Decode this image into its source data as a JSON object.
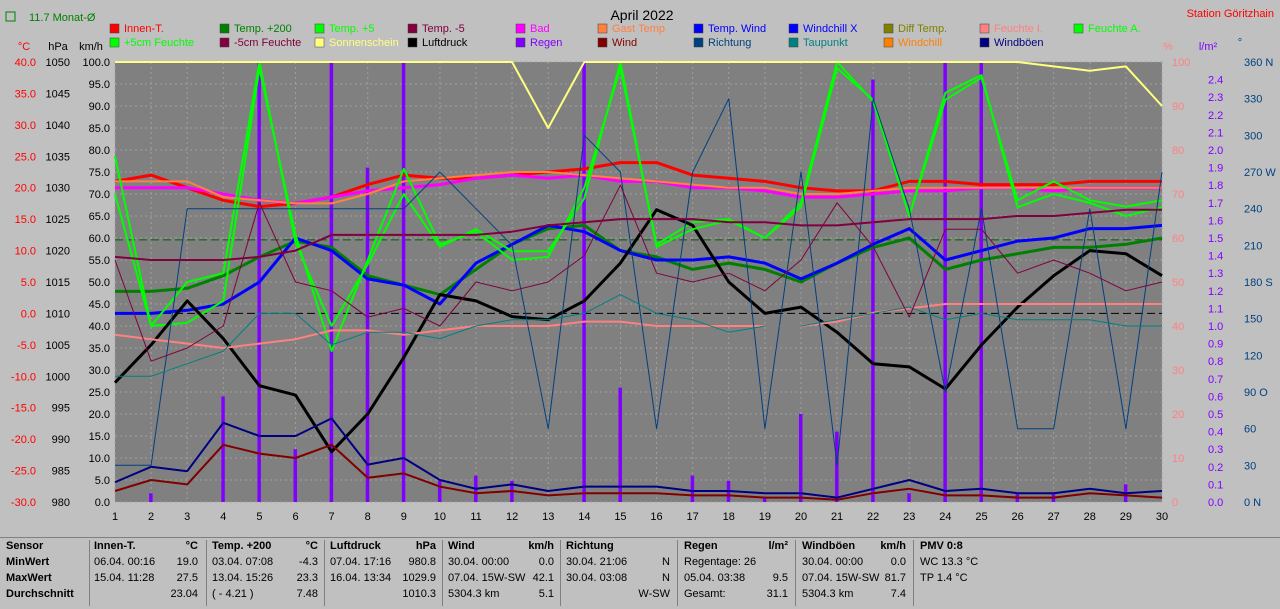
{
  "header": {
    "monthavg": "11.7 Monat-Ø",
    "title": "April 2022",
    "station": "Station Göritzhain"
  },
  "axis_units": {
    "temp": "°C",
    "hpa": "hPa",
    "kmh": "km/h",
    "percent": "%",
    "rain": "l/m²",
    "deg": "°"
  },
  "legend": [
    {
      "label": "Innen-T.",
      "color": "#ff0000"
    },
    {
      "label": "Temp. +200",
      "color": "#008000"
    },
    {
      "label": "Temp. +5",
      "color": "#00ff00"
    },
    {
      "label": "Temp. -5",
      "color": "#800040"
    },
    {
      "label": "Bad",
      "color": "#ff00ff"
    },
    {
      "label": "Gast Temp",
      "color": "#ff8040"
    },
    {
      "label": "Temp. Wind",
      "color": "#0000ff"
    },
    {
      "label": "Windchill X",
      "color": "#0000ff"
    },
    {
      "label": "Diff Temp.",
      "color": "#808000"
    },
    {
      "label": "Feuchte I.",
      "color": "#ff8080"
    },
    {
      "label": "Feuchte A.",
      "color": "#00ff00"
    },
    {
      "label": "+5cm Feuchte",
      "color": "#00ff00"
    },
    {
      "label": "-5cm Feuchte",
      "color": "#800040"
    },
    {
      "label": "Sonnenschein",
      "color": "#ffff80"
    },
    {
      "label": "Luftdruck",
      "color": "#000000"
    },
    {
      "label": "Regen",
      "color": "#8000ff"
    },
    {
      "label": "Wind",
      "color": "#800000"
    },
    {
      "label": "Richtung",
      "color": "#004080"
    },
    {
      "label": "Taupunkt",
      "color": "#008080"
    },
    {
      "label": "Windchill",
      "color": "#ff8000"
    },
    {
      "label": "Windböen",
      "color": "#000080"
    }
  ],
  "chart_data": {
    "type": "line",
    "x": [
      1,
      2,
      3,
      4,
      5,
      6,
      7,
      8,
      9,
      10,
      11,
      12,
      13,
      14,
      15,
      16,
      17,
      18,
      19,
      20,
      21,
      22,
      23,
      24,
      25,
      26,
      27,
      28,
      29,
      30
    ],
    "xlim": [
      1,
      30
    ],
    "axes": {
      "temp_c": {
        "ticks": [
          "40.0",
          "35.0",
          "30.0",
          "25.0",
          "20.0",
          "15.0",
          "10.0",
          "5.0",
          "0.0",
          "-5.0",
          "-10.0",
          "-15.0",
          "-20.0",
          "-25.0",
          "-30.0"
        ],
        "ylim": [
          -30,
          40
        ]
      },
      "hpa": {
        "ticks": [
          "1050",
          "1045",
          "1040",
          "1035",
          "1030",
          "1025",
          "1020",
          "1015",
          "1010",
          "1005",
          "1000",
          "995",
          "990",
          "985",
          "980"
        ],
        "ylim": [
          980,
          1050
        ]
      },
      "kmh": {
        "ticks": [
          "100.0",
          "95.0",
          "90.0",
          "85.0",
          "80.0",
          "75.0",
          "70.0",
          "65.0",
          "60.0",
          "55.0",
          "50.0",
          "45.0",
          "40.0",
          "35.0",
          "30.0",
          "25.0",
          "20.0",
          "15.0",
          "10.0",
          "5.0",
          "0.0"
        ],
        "ylim": [
          0,
          100
        ]
      },
      "percent": {
        "ticks": [
          "100",
          "90",
          "80",
          "70",
          "60",
          "50",
          "40",
          "30",
          "20",
          "10",
          "0"
        ],
        "ylim": [
          0,
          100
        ]
      },
      "rain": {
        "ticks": [
          "2.4",
          "2.3",
          "2.2",
          "2.1",
          "2.0",
          "1.9",
          "1.8",
          "1.7",
          "1.6",
          "1.5",
          "1.4",
          "1.3",
          "1.2",
          "1.1",
          "1.0",
          "0.9",
          "0.8",
          "0.7",
          "0.6",
          "0.5",
          "0.4",
          "0.3",
          "0.2",
          "0.1",
          "0.0"
        ],
        "ylim": [
          0,
          2.5
        ]
      },
      "deg": {
        "ticks": [
          "360 N",
          "330",
          "300",
          "270 W",
          "240",
          "210",
          "180 S",
          "150",
          "120",
          "90 O",
          "60",
          "30",
          "0 N"
        ],
        "ylim": [
          0,
          360
        ]
      }
    },
    "series": [
      {
        "name": "Innen-T.",
        "color": "#ff0000",
        "width": 3,
        "axis": "temp_c",
        "values": [
          21.0,
          22.0,
          20.0,
          18.0,
          17.0,
          17.5,
          18.5,
          20.5,
          22.0,
          21.5,
          21.5,
          22.0,
          22.5,
          23.0,
          24.0,
          24.0,
          22.0,
          21.5,
          21.0,
          20.0,
          19.5,
          19.5,
          21.0,
          21.0,
          20.5,
          20.5,
          20.5,
          21.0,
          21.0,
          21.0
        ]
      },
      {
        "name": "Bad",
        "color": "#ff00ff",
        "width": 3,
        "axis": "temp_c",
        "values": [
          20.0,
          20.0,
          20.0,
          19.0,
          18.0,
          17.5,
          18.5,
          19.5,
          20.0,
          20.5,
          21.5,
          22.0,
          21.5,
          22.0,
          21.0,
          21.0,
          20.0,
          20.0,
          19.5,
          18.5,
          18.5,
          19.0,
          19.5,
          19.5,
          20.0,
          20.0,
          19.5,
          20.0,
          20.0,
          20.0
        ]
      },
      {
        "name": "Gast Temp",
        "color": "#ff8040",
        "width": 2,
        "axis": "temp_c",
        "values": [
          21.0,
          21.0,
          21.0,
          18.5,
          18.0,
          17.5,
          17.5,
          19.0,
          21.0,
          21.5,
          22.0,
          22.5,
          22.5,
          22.0,
          21.5,
          21.0,
          20.5,
          20.0,
          20.0,
          19.0,
          19.0,
          19.5,
          20.0,
          20.0,
          20.0,
          20.0,
          20.0,
          20.0,
          20.0,
          20.0
        ]
      },
      {
        "name": "Temp. +200",
        "color": "#008000",
        "width": 3,
        "axis": "temp_c",
        "values": [
          3.5,
          3.5,
          4.0,
          6.0,
          9.0,
          11.5,
          10.5,
          6.0,
          4.5,
          3.0,
          7.0,
          11.0,
          13.5,
          14.0,
          10.0,
          9.0,
          7.0,
          8.0,
          7.0,
          5.0,
          8.0,
          10.5,
          12.0,
          7.0,
          8.5,
          9.5,
          10.5,
          10.5,
          11.0,
          12.0
        ]
      },
      {
        "name": "Temp. Wind",
        "color": "#0000ff",
        "width": 3,
        "axis": "temp_c",
        "values": [
          0.0,
          0.0,
          0.5,
          1.5,
          5.0,
          12.0,
          10.0,
          5.5,
          4.5,
          1.5,
          8.0,
          11.0,
          14.0,
          13.0,
          10.0,
          8.5,
          8.5,
          9.0,
          8.0,
          5.5,
          8.0,
          11.0,
          13.5,
          8.5,
          10.0,
          11.5,
          12.0,
          13.5,
          13.5,
          14.0
        ]
      },
      {
        "name": "Temp. +5",
        "color": "#00ff00",
        "width": 2,
        "axis": "temp_c",
        "values": [
          25.0,
          -2.0,
          -1.5,
          2.0,
          39.0,
          12.5,
          -6.0,
          8.5,
          23.0,
          11.0,
          13.0,
          8.5,
          9.0,
          20.0,
          39.0,
          11.0,
          14.5,
          15.0,
          12.0,
          17.0,
          39.0,
          34.0,
          15.5,
          34.0,
          37.5,
          18.0,
          21.0,
          18.0,
          17.0,
          18.0
        ]
      },
      {
        "name": "Luftdruck",
        "color": "#000000",
        "width": 3,
        "axis": "hpa",
        "values": [
          999.0,
          1005.0,
          1012.0,
          1006.0,
          998.5,
          997.0,
          988.0,
          994.0,
          1003.0,
          1013.0,
          1012.0,
          1009.5,
          1009.0,
          1012.0,
          1018.0,
          1026.5,
          1024.0,
          1015.0,
          1010.0,
          1011.0,
          1007.0,
          1002.0,
          1001.5,
          998.0,
          1005.0,
          1011.0,
          1016.0,
          1020.0,
          1019.5,
          1016.0
        ]
      },
      {
        "name": "Wind",
        "color": "#800000",
        "width": 2,
        "axis": "kmh",
        "values": [
          2.5,
          5.0,
          4.0,
          13.0,
          11.0,
          10.0,
          13.0,
          5.5,
          6.5,
          3.5,
          2.0,
          2.5,
          1.5,
          2.0,
          2.0,
          2.0,
          1.5,
          1.5,
          1.0,
          1.0,
          0.5,
          2.0,
          3.0,
          1.5,
          1.5,
          1.0,
          1.0,
          2.0,
          1.5,
          1.0
        ]
      },
      {
        "name": "Windböen",
        "color": "#000080",
        "width": 2,
        "axis": "kmh",
        "values": [
          4.5,
          8.0,
          7.0,
          18.0,
          15.0,
          15.0,
          19.0,
          8.5,
          10.0,
          5.0,
          3.0,
          4.0,
          2.5,
          3.5,
          3.5,
          3.5,
          2.5,
          2.5,
          2.0,
          2.0,
          1.0,
          3.0,
          5.0,
          2.5,
          3.0,
          2.0,
          2.0,
          3.0,
          2.0,
          2.5
        ]
      },
      {
        "name": "Feuchte I.",
        "color": "#ff8080",
        "width": 2,
        "axis": "percent",
        "values": [
          38,
          37,
          36,
          35,
          36,
          37,
          39,
          39,
          38,
          39,
          40,
          40,
          40,
          41,
          41,
          40,
          40,
          40,
          40,
          40,
          41,
          43,
          44,
          45,
          45,
          45,
          45,
          45,
          45,
          45
        ]
      },
      {
        "name": "Feuchte A.",
        "color": "#00ff00",
        "width": 2,
        "axis": "percent",
        "values": [
          70,
          40,
          50,
          52,
          100,
          59,
          40,
          54,
          70,
          58,
          62,
          57,
          57,
          69,
          100,
          58,
          62,
          64,
          60,
          68,
          100,
          91,
          65,
          93,
          97,
          67,
          70,
          68,
          65,
          67
        ]
      },
      {
        "name": "Sonnenschein",
        "color": "#ffff80",
        "width": 2,
        "axis": "percent",
        "values": [
          100,
          100,
          100,
          100,
          100,
          100,
          100,
          100,
          100,
          100,
          100,
          100,
          85,
          100,
          100,
          100,
          100,
          100,
          100,
          100,
          100,
          100,
          100,
          100,
          100,
          100,
          99,
          98,
          99,
          90
        ]
      },
      {
        "name": "Richtung",
        "color": "#004080",
        "width": 1,
        "axis": "deg",
        "values": [
          30,
          30,
          240,
          240,
          240,
          240,
          240,
          240,
          240,
          270,
          240,
          210,
          60,
          300,
          270,
          60,
          270,
          330,
          60,
          270,
          30,
          330,
          240,
          90,
          240,
          60,
          60,
          240,
          60,
          270
        ]
      },
      {
        "name": "Taupunkt",
        "color": "#008080",
        "width": 1,
        "axis": "temp_c",
        "values": [
          -10,
          -10,
          -8,
          -6,
          0,
          0,
          -5,
          -3,
          -3,
          -4,
          -2,
          -1,
          -1,
          0,
          3,
          0,
          -1,
          -3,
          -2,
          -2,
          -1,
          0,
          1,
          -1,
          0,
          -1,
          -1,
          -1,
          -2,
          -2
        ]
      },
      {
        "name": "-5cm Feuchte",
        "color": "#800040",
        "width": 1,
        "axis": "percent",
        "values": [
          55,
          32,
          35,
          40,
          68,
          50,
          48,
          42,
          44,
          40,
          50,
          48,
          50,
          56,
          72,
          52,
          50,
          52,
          48,
          55,
          68,
          58,
          42,
          62,
          62,
          52,
          55,
          52,
          48,
          50
        ]
      },
      {
        "name": "Temp. -5",
        "color": "#800040",
        "width": 2,
        "axis": "temp_c",
        "values": [
          9.0,
          8.5,
          8.5,
          8.5,
          9.0,
          10.0,
          12.5,
          12.5,
          12.5,
          12.5,
          12.5,
          13.0,
          14.0,
          14.5,
          15.0,
          15.0,
          15.0,
          14.5,
          14.5,
          14.0,
          14.0,
          14.5,
          15.0,
          15.0,
          15.0,
          15.5,
          15.5,
          16.0,
          16.5,
          16.5
        ]
      }
    ],
    "rain_bars": {
      "name": "Regen",
      "color": "#8000ff",
      "axis": "rain",
      "values": [
        0.0,
        0.05,
        0.0,
        0.6,
        2.5,
        0.3,
        2.5,
        1.9,
        2.5,
        0.12,
        0.15,
        0.12,
        0.0,
        2.5,
        0.65,
        0.0,
        0.15,
        0.12,
        0.03,
        0.5,
        0.4,
        2.4,
        0.05,
        2.5,
        2.5,
        0.05,
        0.05,
        0.0,
        0.1,
        0.0
      ]
    }
  },
  "stats": {
    "sensor": {
      "title": "Sensor",
      "rows": [
        "MinWert",
        "MaxWert",
        "Durchschnitt"
      ]
    },
    "innen": {
      "title": "Innen-T.",
      "unit": "°C",
      "rows": [
        [
          "06.04.  00:16",
          "19.0"
        ],
        [
          "15.04.  11:28",
          "27.5"
        ],
        [
          "",
          "23.04"
        ]
      ]
    },
    "temp200": {
      "title": "Temp. +200",
      "unit": "°C",
      "rows": [
        [
          "03.04.  07:08",
          "-4.3"
        ],
        [
          "13.04.  15:26",
          "23.3"
        ],
        [
          "( - 4.21 )",
          "7.48"
        ]
      ]
    },
    "luftdruck": {
      "title": "Luftdruck",
      "unit": "hPa",
      "rows": [
        [
          "07.04.  17:16",
          "980.8"
        ],
        [
          "16.04.  13:34",
          "1029.9"
        ],
        [
          "",
          "1010.3"
        ]
      ]
    },
    "wind": {
      "title": "Wind",
      "unit": "km/h",
      "rows": [
        [
          "30.04.  00:00",
          "0.0"
        ],
        [
          "07.04.  15W-SW",
          "42.1"
        ],
        [
          "5304.3 km",
          "5.1"
        ]
      ]
    },
    "richtung": {
      "title": "Richtung",
      "unit": "",
      "rows": [
        [
          "30.04.  21:06",
          "N"
        ],
        [
          "30.04.  03:08",
          "N"
        ],
        [
          "",
          "W-SW"
        ]
      ]
    },
    "regen": {
      "title": "Regen",
      "unit": "l/m²",
      "rows": [
        [
          "Regentage: 26",
          ""
        ],
        [
          "05.04.  03:38",
          "9.5"
        ],
        [
          "Gesamt:",
          "31.1"
        ]
      ]
    },
    "windboen": {
      "title": "Windböen",
      "unit": "km/h",
      "rows": [
        [
          "30.04.  00:00",
          "0.0"
        ],
        [
          "07.04.  15W-SW",
          "81.7"
        ],
        [
          "5304.3 km",
          "7.4"
        ]
      ]
    },
    "pmv": {
      "title": "PMV 0:8",
      "rows": [
        "WC 13.3 °C",
        "TP 1.4 °C",
        ""
      ]
    }
  }
}
